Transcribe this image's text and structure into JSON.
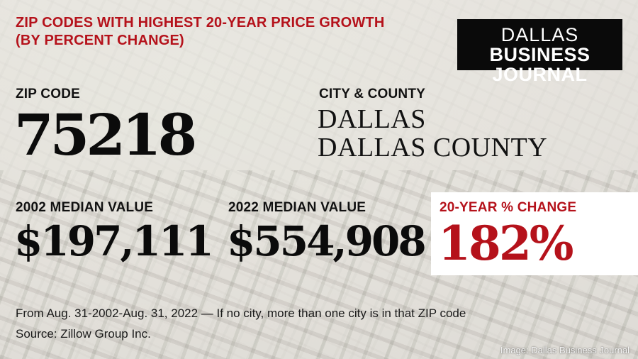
{
  "headline": {
    "line1": "ZIP CODES WITH HIGHEST 20-YEAR PRICE GROWTH",
    "line2": "(BY PERCENT CHANGE)"
  },
  "logo": {
    "line1": "DALLAS",
    "line2": "BUSINESS JOURNAL"
  },
  "zip": {
    "label": "ZIP CODE",
    "value": "75218"
  },
  "city": {
    "label": "CITY & COUNTY",
    "city": "DALLAS",
    "county": "DALLAS COUNTY"
  },
  "median_2002": {
    "label": "2002 MEDIAN VALUE",
    "value": "$197,111"
  },
  "median_2022": {
    "label": "2022 MEDIAN VALUE",
    "value": "$554,908"
  },
  "change": {
    "label": "20-YEAR % CHANGE",
    "value": "182%"
  },
  "notes": {
    "period": "From Aug. 31-2002-Aug. 31, 2022 — If no city, more than one city is in that ZIP code",
    "source": "Source:  Zillow Group Inc."
  },
  "credit": "Image: Dallas Business Journal",
  "colors": {
    "accent_red": "#b5121b",
    "logo_bg": "#0a0a0a",
    "text_dark": "#111111"
  }
}
